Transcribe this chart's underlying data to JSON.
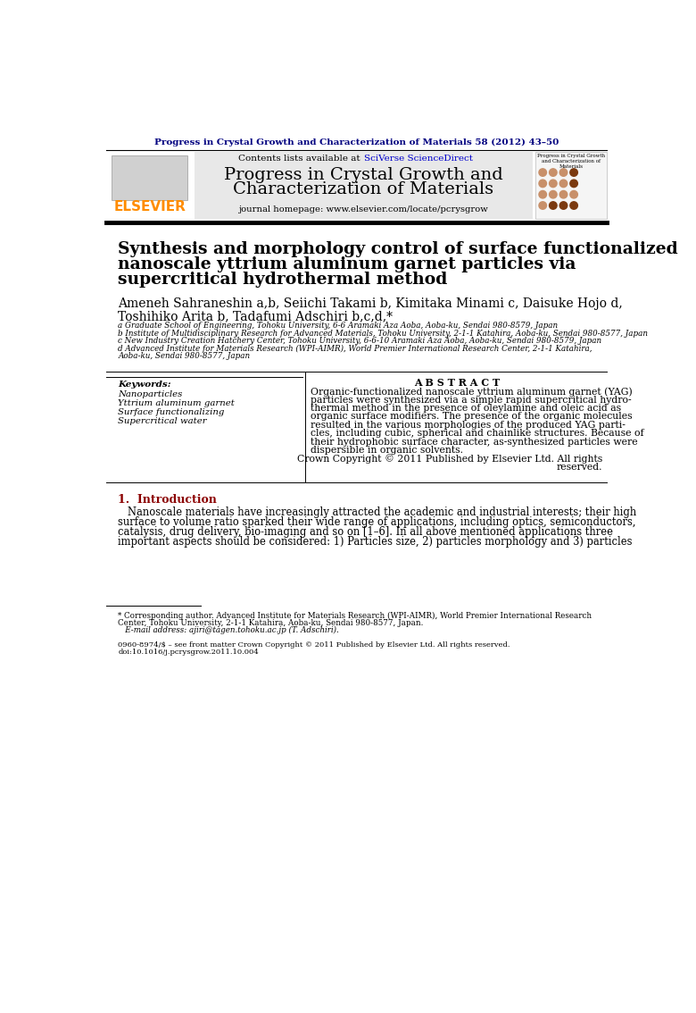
{
  "journal_header": "Progress in Crystal Growth and Characterization of Materials 58 (2012) 43–50",
  "journal_header_color": "#000080",
  "elsevier_color": "#FF8C00",
  "contents_text": "Contents lists available at ",
  "sciverse_text": "SciVerse ScienceDirect",
  "sciverse_color": "#0000CC",
  "journal_name_line1": "Progress in Crystal Growth and",
  "journal_name_line2": "Characterization of Materials",
  "journal_homepage": "journal homepage: www.elsevier.com/locate/pcrysgrow",
  "paper_title_line1": "Synthesis and morphology control of surface functionalized",
  "paper_title_line2": "nanoscale yttrium aluminum garnet particles via",
  "paper_title_line3": "supercritical hydrothermal method",
  "authors_line1": "Ameneh Sahraneshin a,b, Seiichi Takami b, Kimitaka Minami c, Daisuke Hojo d,",
  "authors_line2": "Toshihiko Arita b, Tadafumi Adschiri b,c,d,*",
  "affil_a": "a Graduate School of Engineering, Tohoku University, 6-6 Aramaki Aza Aoba, Aoba-ku, Sendai 980-8579, Japan",
  "affil_b": "b Institute of Multidisciplinary Research for Advanced Materials, Tohoku University, 2-1-1 Katahira, Aoba-ku, Sendai 980-8577, Japan",
  "affil_c": "c New Industry Creation Hatchery Center, Tohoku University, 6-6-10 Aramaki Aza Aoba, Aoba-ku, Sendai 980-8579, Japan",
  "affil_d1": "d Advanced Institute for Materials Research (WPI-AIMR), World Premier International Research Center, 2-1-1 Katahira,",
  "affil_d2": "Aoba-ku, Sendai 980-8577, Japan",
  "abstract_title": "A B S T R A C T",
  "keywords_title": "Keywords:",
  "kw1": "Nanoparticles",
  "kw2": "Yttrium aluminum garnet",
  "kw3": "Surface functionalizing",
  "kw4": "Supercritical water",
  "abstract_line1": "Organic-functionalized nanoscale yttrium aluminum garnet (YAG)",
  "abstract_line2": "particles were synthesized via a simple rapid supercritical hydro-",
  "abstract_line3": "thermal method in the presence of oleylamine and oleic acid as",
  "abstract_line4": "organic surface modifiers. The presence of the organic molecules",
  "abstract_line5": "resulted in the various morphologies of the produced YAG parti-",
  "abstract_line6": "cles, including cubic, spherical and chainlike structures. Because of",
  "abstract_line7": "their hydrophobic surface character, as-synthesized particles were",
  "abstract_line8": "dispersible in organic solvents.",
  "abstract_line9": "Crown Copyright © 2011 Published by Elsevier Ltd. All rights",
  "abstract_line10": "reserved.",
  "intro_title": "1.  Introduction",
  "intro_line1": "   Nanoscale materials have increasingly attracted the academic and industrial interests; their high",
  "intro_line2": "surface to volume ratio sparked their wide range of applications, including optics, semiconductors,",
  "intro_line3": "catalysis, drug delivery, bio-imaging and so on [1–6]. In all above mentioned applications three",
  "intro_line4": "important aspects should be considered: 1) Particles size, 2) particles morphology and 3) particles",
  "footnote1": "* Corresponding author. Advanced Institute for Materials Research (WPI-AIMR), World Premier International Research",
  "footnote2": "Center, Tohoku University, 2-1-1 Katahira, Aoba-ku, Sendai 980-8577, Japan.",
  "footnote3": "   E-mail address: ajiri@tagen.tohoku.ac.jp (T. Adschiri).",
  "footer1": "0960-8974/$ – see front matter Crown Copyright © 2011 Published by Elsevier Ltd. All rights reserved.",
  "footer2": "doi:10.1016/j.pcrysgrow.2011.10.004",
  "bg_color": "#FFFFFF",
  "text_color": "#000000",
  "title_fontsize": 13.5,
  "authors_fontsize": 10.0,
  "affil_fontsize": 6.3,
  "abstract_fontsize": 7.8,
  "intro_fontsize": 8.3,
  "section_title_color": "#8B0000",
  "dot_colors_row0": [
    "#C8906A",
    "#C8906A",
    "#C8906A",
    "#7B3A10"
  ],
  "dot_colors_row1": [
    "#C8906A",
    "#C8906A",
    "#C8906A",
    "#7B3A10"
  ],
  "dot_colors_row2": [
    "#C8906A",
    "#C8906A",
    "#C8906A",
    "#C8906A"
  ],
  "dot_colors_row3": [
    "#C8906A",
    "#7B3A10",
    "#7B3A10",
    "#7B3A10"
  ]
}
